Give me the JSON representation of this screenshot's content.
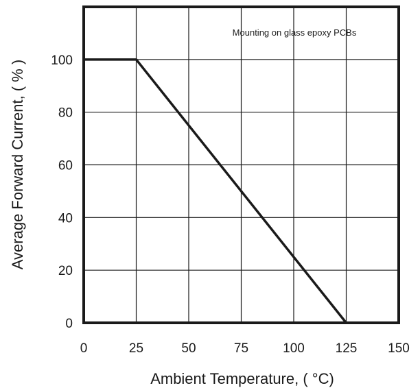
{
  "chart_data": {
    "type": "line",
    "title": "",
    "annotation": "Mounting on glass epoxy PCBs",
    "xlabel": "Ambient Temperature, ( °C)",
    "ylabel": "Average Forward Current, ( % )",
    "xlim": [
      0,
      150
    ],
    "ylim": [
      0,
      120
    ],
    "xticks": [
      0,
      25,
      50,
      75,
      100,
      125,
      150
    ],
    "yticks": [
      0,
      20,
      40,
      60,
      80,
      100
    ],
    "grid": true,
    "series": [
      {
        "x": [
          0,
          25,
          125
        ],
        "y": [
          100,
          100,
          0
        ]
      }
    ],
    "colors": {
      "line": "#1a1a1a",
      "grid": "#1a1a1a",
      "frame": "#1a1a1a"
    }
  }
}
